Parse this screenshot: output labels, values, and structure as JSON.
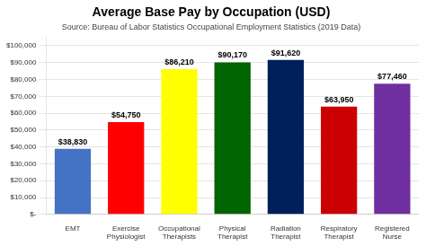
{
  "chart_data": {
    "type": "bar",
    "title": "Average Base Pay by Occupation (USD)",
    "subtitle": "Source: Bureau of Labor Statistics Occupational Employment Statistics (2019 Data)",
    "categories": [
      "EMT",
      "Exercise\nPhysiologist",
      "Occupational\nTherapists",
      "Physical\nTherapist",
      "Radiation\nTherapist",
      "Respiratory\nTherapist",
      "Registered\nNurse"
    ],
    "values": [
      38830,
      54750,
      86210,
      90170,
      91620,
      63950,
      77460
    ],
    "value_labels": [
      "$38,830",
      "$54,750",
      "$86,210",
      "$90,170",
      "$91,620",
      "$63,950",
      "$77,460"
    ],
    "colors": [
      "#4472C4",
      "#FF0000",
      "#FFFF00",
      "#006400",
      "#00205B",
      "#CC0000",
      "#7030A0"
    ],
    "ylim": [
      0,
      105000
    ],
    "yticks": [
      {
        "value": 0,
        "label": "$-"
      },
      {
        "value": 10000,
        "label": "$10,000"
      },
      {
        "value": 20000,
        "label": "$20,000"
      },
      {
        "value": 30000,
        "label": "$30,000"
      },
      {
        "value": 40000,
        "label": "$40,000"
      },
      {
        "value": 50000,
        "label": "$50,000"
      },
      {
        "value": 60000,
        "label": "$60,000"
      },
      {
        "value": 70000,
        "label": "$70,000"
      },
      {
        "value": 80000,
        "label": "$80,000"
      },
      {
        "value": 90000,
        "label": "$90,000"
      },
      {
        "value": 100000,
        "label": "$100,000"
      }
    ],
    "grid": true,
    "data_labels": true
  }
}
